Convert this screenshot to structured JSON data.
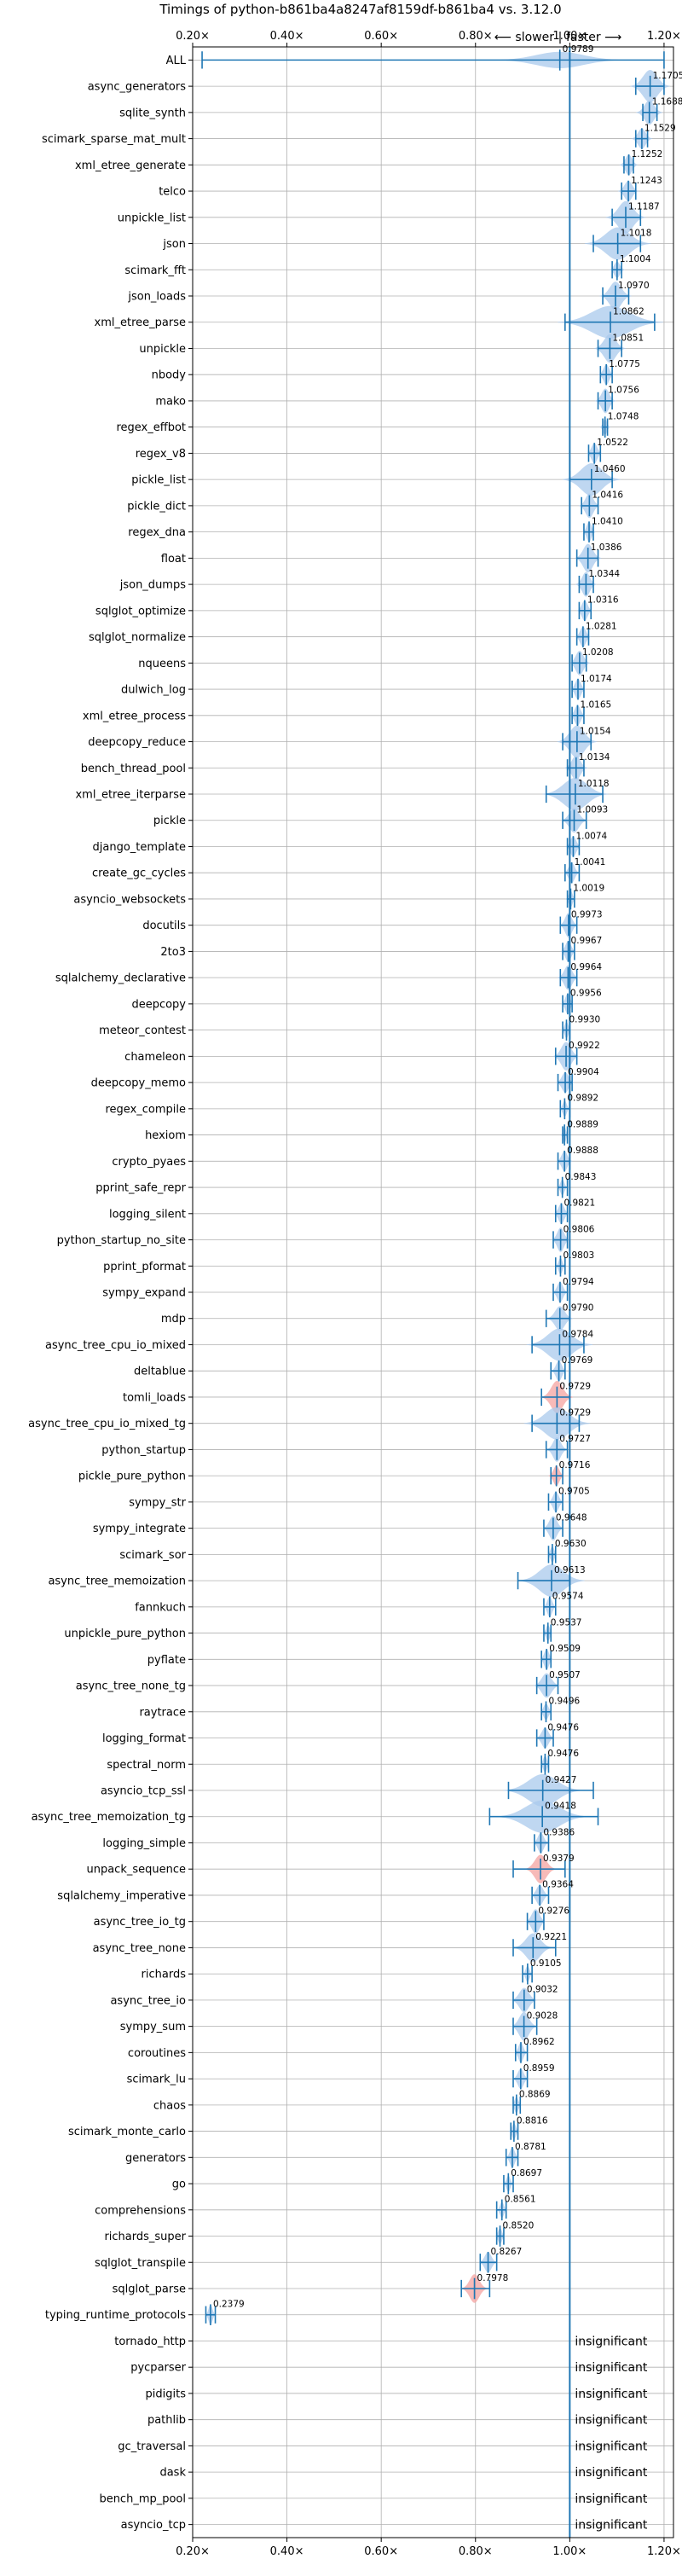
{
  "chart_data": {
    "type": "violin",
    "title": "Timings of python-b861ba4a8247af8159df-b861ba4 vs. 3.12.0",
    "direction_slower": "⟵ slower",
    "direction_faster": "faster ⟶",
    "xlim": [
      0.2,
      1.22
    ],
    "x_ticks": [
      0.2,
      0.4,
      0.6,
      0.8,
      1.0,
      1.2
    ],
    "x_tick_labels": [
      "0.20×",
      "0.40×",
      "0.60×",
      "0.80×",
      "1.00×",
      "1.20×"
    ],
    "reference_line": 1.0,
    "grid": true,
    "insignificant_label": "insignificant",
    "colors": {
      "violin": "#a9c9ec",
      "violin_slow": "#f4a3a0",
      "mark": "#1f77b4",
      "reference": "#1f77b4",
      "grid": "#b0b0b0"
    },
    "benchmarks": [
      {
        "name": "ALL",
        "value": 0.9789,
        "label": "0.9789",
        "lo": 0.22,
        "hi": 1.2,
        "width": 0.02,
        "spread": 0.05,
        "slow": false
      },
      {
        "name": "async_generators",
        "value": 1.1705,
        "label": "1.1705",
        "lo": 1.14,
        "hi": 1.2,
        "width": 0.04,
        "spread": 0.015,
        "slow": false
      },
      {
        "name": "sqlite_synth",
        "value": 1.1688,
        "label": "1.1688",
        "lo": 1.155,
        "hi": 1.185,
        "width": 0.03,
        "spread": 0.01,
        "slow": false
      },
      {
        "name": "scimark_sparse_mat_mult",
        "value": 1.1529,
        "label": "1.1529",
        "lo": 1.14,
        "hi": 1.165,
        "width": 0.025,
        "spread": 0.008,
        "slow": false
      },
      {
        "name": "xml_etree_generate",
        "value": 1.1252,
        "label": "1.1252",
        "lo": 1.115,
        "hi": 1.135,
        "width": 0.025,
        "spread": 0.007,
        "slow": false
      },
      {
        "name": "telco",
        "value": 1.1243,
        "label": "1.1243",
        "lo": 1.11,
        "hi": 1.14,
        "width": 0.025,
        "spread": 0.008,
        "slow": false
      },
      {
        "name": "unpickle_list",
        "value": 1.1187,
        "label": "1.1187",
        "lo": 1.09,
        "hi": 1.15,
        "width": 0.04,
        "spread": 0.015,
        "slow": false
      },
      {
        "name": "json",
        "value": 1.1018,
        "label": "1.1018",
        "lo": 1.05,
        "hi": 1.15,
        "width": 0.05,
        "spread": 0.025,
        "slow": false
      },
      {
        "name": "scimark_fft",
        "value": 1.1004,
        "label": "1.1004",
        "lo": 1.09,
        "hi": 1.11,
        "width": 0.02,
        "spread": 0.006,
        "slow": false
      },
      {
        "name": "json_loads",
        "value": 1.097,
        "label": "1.0970",
        "lo": 1.07,
        "hi": 1.125,
        "width": 0.035,
        "spread": 0.012,
        "slow": false
      },
      {
        "name": "xml_etree_parse",
        "value": 1.0862,
        "label": "1.0862",
        "lo": 0.99,
        "hi": 1.18,
        "width": 0.04,
        "spread": 0.04,
        "slow": false
      },
      {
        "name": "unpickle",
        "value": 1.0851,
        "label": "1.0851",
        "lo": 1.06,
        "hi": 1.11,
        "width": 0.035,
        "spread": 0.012,
        "slow": false
      },
      {
        "name": "nbody",
        "value": 1.0775,
        "label": "1.0775",
        "lo": 1.065,
        "hi": 1.09,
        "width": 0.025,
        "spread": 0.006,
        "slow": false
      },
      {
        "name": "mako",
        "value": 1.0756,
        "label": "1.0756",
        "lo": 1.06,
        "hi": 1.09,
        "width": 0.03,
        "spread": 0.008,
        "slow": false
      },
      {
        "name": "regex_effbot",
        "value": 1.0748,
        "label": "1.0748",
        "lo": 1.07,
        "hi": 1.08,
        "width": 0.02,
        "spread": 0.004,
        "slow": false
      },
      {
        "name": "regex_v8",
        "value": 1.0522,
        "label": "1.0522",
        "lo": 1.04,
        "hi": 1.065,
        "width": 0.025,
        "spread": 0.006,
        "slow": false
      },
      {
        "name": "pickle_list",
        "value": 1.046,
        "label": "1.0460",
        "lo": 1.0,
        "hi": 1.09,
        "width": 0.04,
        "spread": 0.022,
        "slow": false
      },
      {
        "name": "pickle_dict",
        "value": 1.0416,
        "label": "1.0416",
        "lo": 1.025,
        "hi": 1.06,
        "width": 0.03,
        "spread": 0.008,
        "slow": false
      },
      {
        "name": "regex_dna",
        "value": 1.041,
        "label": "1.0410",
        "lo": 1.03,
        "hi": 1.05,
        "width": 0.025,
        "spread": 0.005,
        "slow": false
      },
      {
        "name": "float",
        "value": 1.0386,
        "label": "1.0386",
        "lo": 1.015,
        "hi": 1.06,
        "width": 0.035,
        "spread": 0.01,
        "slow": false
      },
      {
        "name": "json_dumps",
        "value": 1.0344,
        "label": "1.0344",
        "lo": 1.02,
        "hi": 1.05,
        "width": 0.03,
        "spread": 0.008,
        "slow": false
      },
      {
        "name": "sqlglot_optimize",
        "value": 1.0316,
        "label": "1.0316",
        "lo": 1.02,
        "hi": 1.045,
        "width": 0.025,
        "spread": 0.006,
        "slow": false
      },
      {
        "name": "sqlglot_normalize",
        "value": 1.0281,
        "label": "1.0281",
        "lo": 1.015,
        "hi": 1.04,
        "width": 0.025,
        "spread": 0.006,
        "slow": false
      },
      {
        "name": "nqueens",
        "value": 1.0208,
        "label": "1.0208",
        "lo": 1.005,
        "hi": 1.035,
        "width": 0.03,
        "spread": 0.008,
        "slow": false
      },
      {
        "name": "dulwich_log",
        "value": 1.0174,
        "label": "1.0174",
        "lo": 1.005,
        "hi": 1.03,
        "width": 0.025,
        "spread": 0.006,
        "slow": false
      },
      {
        "name": "xml_etree_process",
        "value": 1.0165,
        "label": "1.0165",
        "lo": 1.005,
        "hi": 1.03,
        "width": 0.025,
        "spread": 0.006,
        "slow": false
      },
      {
        "name": "deepcopy_reduce",
        "value": 1.0154,
        "label": "1.0154",
        "lo": 0.985,
        "hi": 1.045,
        "width": 0.04,
        "spread": 0.015,
        "slow": false
      },
      {
        "name": "bench_thread_pool",
        "value": 1.0134,
        "label": "1.0134",
        "lo": 0.995,
        "hi": 1.03,
        "width": 0.03,
        "spread": 0.009,
        "slow": false
      },
      {
        "name": "xml_etree_iterparse",
        "value": 1.0118,
        "label": "1.0118",
        "lo": 0.95,
        "hi": 1.07,
        "width": 0.04,
        "spread": 0.025,
        "slow": false
      },
      {
        "name": "pickle",
        "value": 1.0093,
        "label": "1.0093",
        "lo": 0.985,
        "hi": 1.035,
        "width": 0.03,
        "spread": 0.01,
        "slow": false
      },
      {
        "name": "django_template",
        "value": 1.0074,
        "label": "1.0074",
        "lo": 0.995,
        "hi": 1.02,
        "width": 0.025,
        "spread": 0.006,
        "slow": false
      },
      {
        "name": "create_gc_cycles",
        "value": 1.0041,
        "label": "1.0041",
        "lo": 0.99,
        "hi": 1.02,
        "width": 0.025,
        "spread": 0.006,
        "slow": false
      },
      {
        "name": "asyncio_websockets",
        "value": 1.0019,
        "label": "1.0019",
        "lo": 0.995,
        "hi": 1.01,
        "width": 0.02,
        "spread": 0.004,
        "slow": false
      },
      {
        "name": "docutils",
        "value": 0.9973,
        "label": "0.9973",
        "lo": 0.98,
        "hi": 1.015,
        "width": 0.03,
        "spread": 0.007,
        "slow": false
      },
      {
        "name": "2to3",
        "value": 0.9967,
        "label": "0.9967",
        "lo": 0.985,
        "hi": 1.01,
        "width": 0.025,
        "spread": 0.006,
        "slow": false
      },
      {
        "name": "sqlalchemy_declarative",
        "value": 0.9964,
        "label": "0.9964",
        "lo": 0.98,
        "hi": 1.015,
        "width": 0.03,
        "spread": 0.008,
        "slow": false
      },
      {
        "name": "deepcopy",
        "value": 0.9956,
        "label": "0.9956",
        "lo": 0.985,
        "hi": 1.005,
        "width": 0.025,
        "spread": 0.005,
        "slow": false
      },
      {
        "name": "meteor_contest",
        "value": 0.993,
        "label": "0.9930",
        "lo": 0.985,
        "hi": 1.0,
        "width": 0.02,
        "spread": 0.004,
        "slow": false
      },
      {
        "name": "chameleon",
        "value": 0.9922,
        "label": "0.9922",
        "lo": 0.97,
        "hi": 1.015,
        "width": 0.035,
        "spread": 0.01,
        "slow": false
      },
      {
        "name": "deepcopy_memo",
        "value": 0.9904,
        "label": "0.9904",
        "lo": 0.975,
        "hi": 1.005,
        "width": 0.025,
        "spread": 0.007,
        "slow": false
      },
      {
        "name": "regex_compile",
        "value": 0.9892,
        "label": "0.9892",
        "lo": 0.98,
        "hi": 1.0,
        "width": 0.02,
        "spread": 0.004,
        "slow": false
      },
      {
        "name": "hexiom",
        "value": 0.9889,
        "label": "0.9889",
        "lo": 0.985,
        "hi": 0.995,
        "width": 0.02,
        "spread": 0.003,
        "slow": false
      },
      {
        "name": "crypto_pyaes",
        "value": 0.9888,
        "label": "0.9888",
        "lo": 0.975,
        "hi": 1.0,
        "width": 0.025,
        "spread": 0.006,
        "slow": false
      },
      {
        "name": "pprint_safe_repr",
        "value": 0.9843,
        "label": "0.9843",
        "lo": 0.975,
        "hi": 0.995,
        "width": 0.02,
        "spread": 0.004,
        "slow": false
      },
      {
        "name": "logging_silent",
        "value": 0.9821,
        "label": "0.9821",
        "lo": 0.97,
        "hi": 0.995,
        "width": 0.025,
        "spread": 0.006,
        "slow": false
      },
      {
        "name": "python_startup_no_site",
        "value": 0.9806,
        "label": "0.9806",
        "lo": 0.965,
        "hi": 0.995,
        "width": 0.03,
        "spread": 0.007,
        "slow": false
      },
      {
        "name": "pprint_pformat",
        "value": 0.9803,
        "label": "0.9803",
        "lo": 0.97,
        "hi": 0.99,
        "width": 0.02,
        "spread": 0.004,
        "slow": false
      },
      {
        "name": "sympy_expand",
        "value": 0.9794,
        "label": "0.9794",
        "lo": 0.965,
        "hi": 0.995,
        "width": 0.025,
        "spread": 0.006,
        "slow": false
      },
      {
        "name": "mdp",
        "value": 0.979,
        "label": "0.9790",
        "lo": 0.95,
        "hi": 1.0,
        "width": 0.03,
        "spread": 0.01,
        "slow": false
      },
      {
        "name": "async_tree_cpu_io_mixed",
        "value": 0.9784,
        "label": "0.9784",
        "lo": 0.92,
        "hi": 1.03,
        "width": 0.045,
        "spread": 0.025,
        "slow": false
      },
      {
        "name": "deltablue",
        "value": 0.9769,
        "label": "0.9769",
        "lo": 0.96,
        "hi": 0.99,
        "width": 0.025,
        "spread": 0.006,
        "slow": false
      },
      {
        "name": "tomli_loads",
        "value": 0.9729,
        "label": "0.9729",
        "lo": 0.94,
        "hi": 1.0,
        "width": 0.04,
        "spread": 0.012,
        "slow": true
      },
      {
        "name": "async_tree_cpu_io_mixed_tg",
        "value": 0.9729,
        "label": "0.9729",
        "lo": 0.92,
        "hi": 1.02,
        "width": 0.045,
        "spread": 0.025,
        "slow": false
      },
      {
        "name": "python_startup",
        "value": 0.9727,
        "label": "0.9727",
        "lo": 0.95,
        "hi": 0.995,
        "width": 0.03,
        "spread": 0.008,
        "slow": false
      },
      {
        "name": "pickle_pure_python",
        "value": 0.9716,
        "label": "0.9716",
        "lo": 0.96,
        "hi": 0.985,
        "width": 0.025,
        "spread": 0.006,
        "slow": true
      },
      {
        "name": "sympy_str",
        "value": 0.9705,
        "label": "0.9705",
        "lo": 0.955,
        "hi": 0.985,
        "width": 0.025,
        "spread": 0.006,
        "slow": false
      },
      {
        "name": "sympy_integrate",
        "value": 0.9648,
        "label": "0.9648",
        "lo": 0.945,
        "hi": 0.985,
        "width": 0.03,
        "spread": 0.008,
        "slow": false
      },
      {
        "name": "scimark_sor",
        "value": 0.963,
        "label": "0.9630",
        "lo": 0.955,
        "hi": 0.97,
        "width": 0.02,
        "spread": 0.004,
        "slow": false
      },
      {
        "name": "async_tree_memoization",
        "value": 0.9613,
        "label": "0.9613",
        "lo": 0.89,
        "hi": 1.0,
        "width": 0.04,
        "spread": 0.025,
        "slow": false
      },
      {
        "name": "fannkuch",
        "value": 0.9574,
        "label": "0.9574",
        "lo": 0.945,
        "hi": 0.97,
        "width": 0.025,
        "spread": 0.005,
        "slow": false
      },
      {
        "name": "unpickle_pure_python",
        "value": 0.9537,
        "label": "0.9537",
        "lo": 0.945,
        "hi": 0.96,
        "width": 0.02,
        "spread": 0.004,
        "slow": false
      },
      {
        "name": "pyflate",
        "value": 0.9509,
        "label": "0.9509",
        "lo": 0.94,
        "hi": 0.96,
        "width": 0.025,
        "spread": 0.005,
        "slow": false
      },
      {
        "name": "async_tree_none_tg",
        "value": 0.9507,
        "label": "0.9507",
        "lo": 0.93,
        "hi": 0.975,
        "width": 0.03,
        "spread": 0.01,
        "slow": false
      },
      {
        "name": "raytrace",
        "value": 0.9496,
        "label": "0.9496",
        "lo": 0.94,
        "hi": 0.96,
        "width": 0.02,
        "spread": 0.005,
        "slow": false
      },
      {
        "name": "logging_format",
        "value": 0.9476,
        "label": "0.9476",
        "lo": 0.93,
        "hi": 0.965,
        "width": 0.025,
        "spread": 0.007,
        "slow": false
      },
      {
        "name": "spectral_norm",
        "value": 0.9476,
        "label": "0.9476",
        "lo": 0.94,
        "hi": 0.955,
        "width": 0.02,
        "spread": 0.004,
        "slow": false
      },
      {
        "name": "asyncio_tcp_ssl",
        "value": 0.9427,
        "label": "0.9427",
        "lo": 0.87,
        "hi": 1.05,
        "width": 0.04,
        "spread": 0.03,
        "slow": false
      },
      {
        "name": "async_tree_memoization_tg",
        "value": 0.9418,
        "label": "0.9418",
        "lo": 0.83,
        "hi": 1.06,
        "width": 0.045,
        "spread": 0.035,
        "slow": false
      },
      {
        "name": "logging_simple",
        "value": 0.9386,
        "label": "0.9386",
        "lo": 0.925,
        "hi": 0.955,
        "width": 0.025,
        "spread": 0.006,
        "slow": false
      },
      {
        "name": "unpack_sequence",
        "value": 0.9379,
        "label": "0.9379",
        "lo": 0.88,
        "hi": 0.99,
        "width": 0.035,
        "spread": 0.012,
        "slow": true
      },
      {
        "name": "sqlalchemy_imperative",
        "value": 0.9364,
        "label": "0.9364",
        "lo": 0.92,
        "hi": 0.955,
        "width": 0.025,
        "spread": 0.007,
        "slow": false
      },
      {
        "name": "async_tree_io_tg",
        "value": 0.9276,
        "label": "0.9276",
        "lo": 0.91,
        "hi": 0.945,
        "width": 0.03,
        "spread": 0.008,
        "slow": false
      },
      {
        "name": "async_tree_none",
        "value": 0.9221,
        "label": "0.9221",
        "lo": 0.88,
        "hi": 0.97,
        "width": 0.035,
        "spread": 0.015,
        "slow": false
      },
      {
        "name": "richards",
        "value": 0.9105,
        "label": "0.9105",
        "lo": 0.9,
        "hi": 0.92,
        "width": 0.02,
        "spread": 0.004,
        "slow": false
      },
      {
        "name": "async_tree_io",
        "value": 0.9032,
        "label": "0.9032",
        "lo": 0.88,
        "hi": 0.925,
        "width": 0.03,
        "spread": 0.01,
        "slow": false
      },
      {
        "name": "sympy_sum",
        "value": 0.9028,
        "label": "0.9028",
        "lo": 0.88,
        "hi": 0.93,
        "width": 0.035,
        "spread": 0.01,
        "slow": false
      },
      {
        "name": "coroutines",
        "value": 0.8962,
        "label": "0.8962",
        "lo": 0.885,
        "hi": 0.91,
        "width": 0.025,
        "spread": 0.005,
        "slow": false
      },
      {
        "name": "scimark_lu",
        "value": 0.8959,
        "label": "0.8959",
        "lo": 0.88,
        "hi": 0.91,
        "width": 0.025,
        "spread": 0.006,
        "slow": false
      },
      {
        "name": "chaos",
        "value": 0.8869,
        "label": "0.8869",
        "lo": 0.88,
        "hi": 0.895,
        "width": 0.02,
        "spread": 0.004,
        "slow": false
      },
      {
        "name": "scimark_monte_carlo",
        "value": 0.8816,
        "label": "0.8816",
        "lo": 0.875,
        "hi": 0.89,
        "width": 0.02,
        "spread": 0.004,
        "slow": false
      },
      {
        "name": "generators",
        "value": 0.8781,
        "label": "0.8781",
        "lo": 0.865,
        "hi": 0.89,
        "width": 0.025,
        "spread": 0.005,
        "slow": false
      },
      {
        "name": "go",
        "value": 0.8697,
        "label": "0.8697",
        "lo": 0.86,
        "hi": 0.88,
        "width": 0.02,
        "spread": 0.004,
        "slow": false
      },
      {
        "name": "comprehensions",
        "value": 0.8561,
        "label": "0.8561",
        "lo": 0.845,
        "hi": 0.865,
        "width": 0.02,
        "spread": 0.004,
        "slow": false
      },
      {
        "name": "richards_super",
        "value": 0.852,
        "label": "0.8520",
        "lo": 0.845,
        "hi": 0.86,
        "width": 0.02,
        "spread": 0.004,
        "slow": false
      },
      {
        "name": "sqlglot_transpile",
        "value": 0.8267,
        "label": "0.8267",
        "lo": 0.81,
        "hi": 0.845,
        "width": 0.025,
        "spread": 0.007,
        "slow": false
      },
      {
        "name": "sqlglot_parse",
        "value": 0.7978,
        "label": "0.7978",
        "lo": 0.77,
        "hi": 0.83,
        "width": 0.035,
        "spread": 0.01,
        "slow": true
      },
      {
        "name": "typing_runtime_protocols",
        "value": 0.2379,
        "label": "0.2379",
        "lo": 0.228,
        "hi": 0.248,
        "width": 0.025,
        "spread": 0.004,
        "slow": false
      },
      {
        "name": "tornado_http",
        "insignificant": true
      },
      {
        "name": "pycparser",
        "insignificant": true
      },
      {
        "name": "pidigits",
        "insignificant": true
      },
      {
        "name": "pathlib",
        "insignificant": true
      },
      {
        "name": "gc_traversal",
        "insignificant": true
      },
      {
        "name": "dask",
        "insignificant": true
      },
      {
        "name": "bench_mp_pool",
        "insignificant": true
      },
      {
        "name": "asyncio_tcp",
        "insignificant": true
      }
    ]
  }
}
